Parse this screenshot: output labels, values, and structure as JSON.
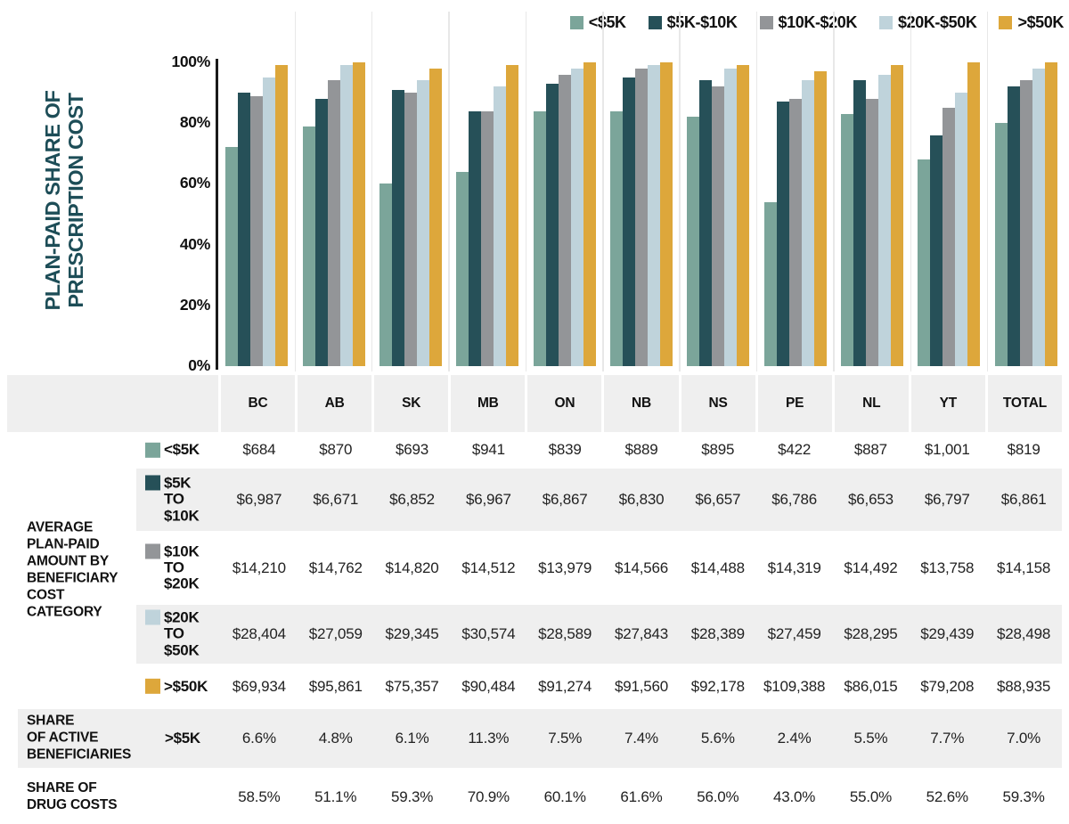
{
  "title": {
    "line1": "PLAN-PAID SHARE OF",
    "line2": "PRESCRIPTION COST"
  },
  "colors": {
    "sage": "#7BA59A",
    "teal": "#265058",
    "gray": "#939598",
    "lightblue": "#BFD3DB",
    "gold": "#DDA73B",
    "title_teal": "#1D4D57",
    "row_shade": "#EFEFEF"
  },
  "chart_data": {
    "type": "bar",
    "title": "PLAN-PAID SHARE OF PRESCRIPTION COST",
    "ylabel": "PLAN-PAID SHARE OF PRESCRIPTION COST",
    "xlabel": "",
    "ylim": [
      0,
      100
    ],
    "yticks": [
      "100%",
      "80%",
      "60%",
      "40%",
      "20%",
      "0%"
    ],
    "grid": "vertical-between-groups",
    "legend_position": "top-right",
    "categories": [
      "BC",
      "AB",
      "SK",
      "MB",
      "ON",
      "NB",
      "NS",
      "PE",
      "NL",
      "YT",
      "TOTAL"
    ],
    "series": [
      {
        "name": "<$5K",
        "color": "#7BA59A",
        "values": [
          72,
          79,
          60,
          64,
          84,
          84,
          82,
          54,
          83,
          68,
          80
        ]
      },
      {
        "name": "$5K-$10K",
        "color": "#265058",
        "values": [
          90,
          88,
          91,
          84,
          93,
          95,
          94,
          87,
          94,
          76,
          92
        ]
      },
      {
        "name": "$10K-$20K",
        "color": "#939598",
        "values": [
          89,
          94,
          90,
          84,
          96,
          98,
          92,
          88,
          88,
          85,
          94
        ]
      },
      {
        "name": "$20K-$50K",
        "color": "#BFD3DB",
        "values": [
          95,
          99,
          94,
          92,
          98,
          99,
          98,
          94,
          96,
          90,
          98
        ]
      },
      {
        "name": ">$50K",
        "color": "#DDA73B",
        "values": [
          99,
          100,
          98,
          99,
          100,
          100,
          99,
          97,
          99,
          100,
          100
        ]
      }
    ]
  },
  "table": {
    "columns": [
      "BC",
      "AB",
      "SK",
      "MB",
      "ON",
      "NB",
      "NS",
      "PE",
      "NL",
      "YT",
      "TOTAL"
    ],
    "group_label_avg": "AVERAGE\nPLAN-PAID\nAMOUNT BY\nBENEFICIARY\nCOST\nCATEGORY",
    "rows": [
      {
        "category": "<$5K",
        "swatch": "#7BA59A",
        "group_label": "",
        "values": [
          "$684",
          "$870",
          "$693",
          "$941",
          "$839",
          "$889",
          "$895",
          "$422",
          "$887",
          "$1,001",
          "$819"
        ]
      },
      {
        "category": "$5K\nTO\n$10K",
        "swatch": "#265058",
        "group_label": "",
        "values": [
          "$6,987",
          "$6,671",
          "$6,852",
          "$6,967",
          "$6,867",
          "$6,830",
          "$6,657",
          "$6,786",
          "$6,653",
          "$6,797",
          "$6,861"
        ]
      },
      {
        "category": "$10K\nTO\n$20K",
        "swatch": "#939598",
        "group_label": "",
        "values": [
          "$14,210",
          "$14,762",
          "$14,820",
          "$14,512",
          "$13,979",
          "$14,566",
          "$14,488",
          "$14,319",
          "$14,492",
          "$13,758",
          "$14,158"
        ]
      },
      {
        "category": "$20K\nTO\n$50K",
        "swatch": "#BFD3DB",
        "group_label": "",
        "values": [
          "$28,404",
          "$27,059",
          "$29,345",
          "$30,574",
          "$28,589",
          "$27,843",
          "$28,389",
          "$27,459",
          "$28,295",
          "$29,439",
          "$28,498"
        ]
      },
      {
        "category": ">$50K",
        "swatch": "#DDA73B",
        "group_label": "",
        "values": [
          "$69,934",
          "$95,861",
          "$75,357",
          "$90,484",
          "$91,274",
          "$91,560",
          "$92,178",
          "$109,388",
          "$86,015",
          "$79,208",
          "$88,935"
        ]
      },
      {
        "category": ">$5K",
        "swatch": "",
        "group_label": "SHARE\nOF ACTIVE\nBENEFICIARIES",
        "values": [
          "6.6%",
          "4.8%",
          "6.1%",
          "11.3%",
          "7.5%",
          "7.4%",
          "5.6%",
          "2.4%",
          "5.5%",
          "7.7%",
          "7.0%"
        ]
      },
      {
        "category": "",
        "swatch": "",
        "group_label": "SHARE OF\nDRUG COSTS",
        "values": [
          "58.5%",
          "51.1%",
          "59.3%",
          "70.9%",
          "60.1%",
          "61.6%",
          "56.0%",
          "43.0%",
          "55.0%",
          "52.6%",
          "59.3%"
        ]
      }
    ]
  }
}
